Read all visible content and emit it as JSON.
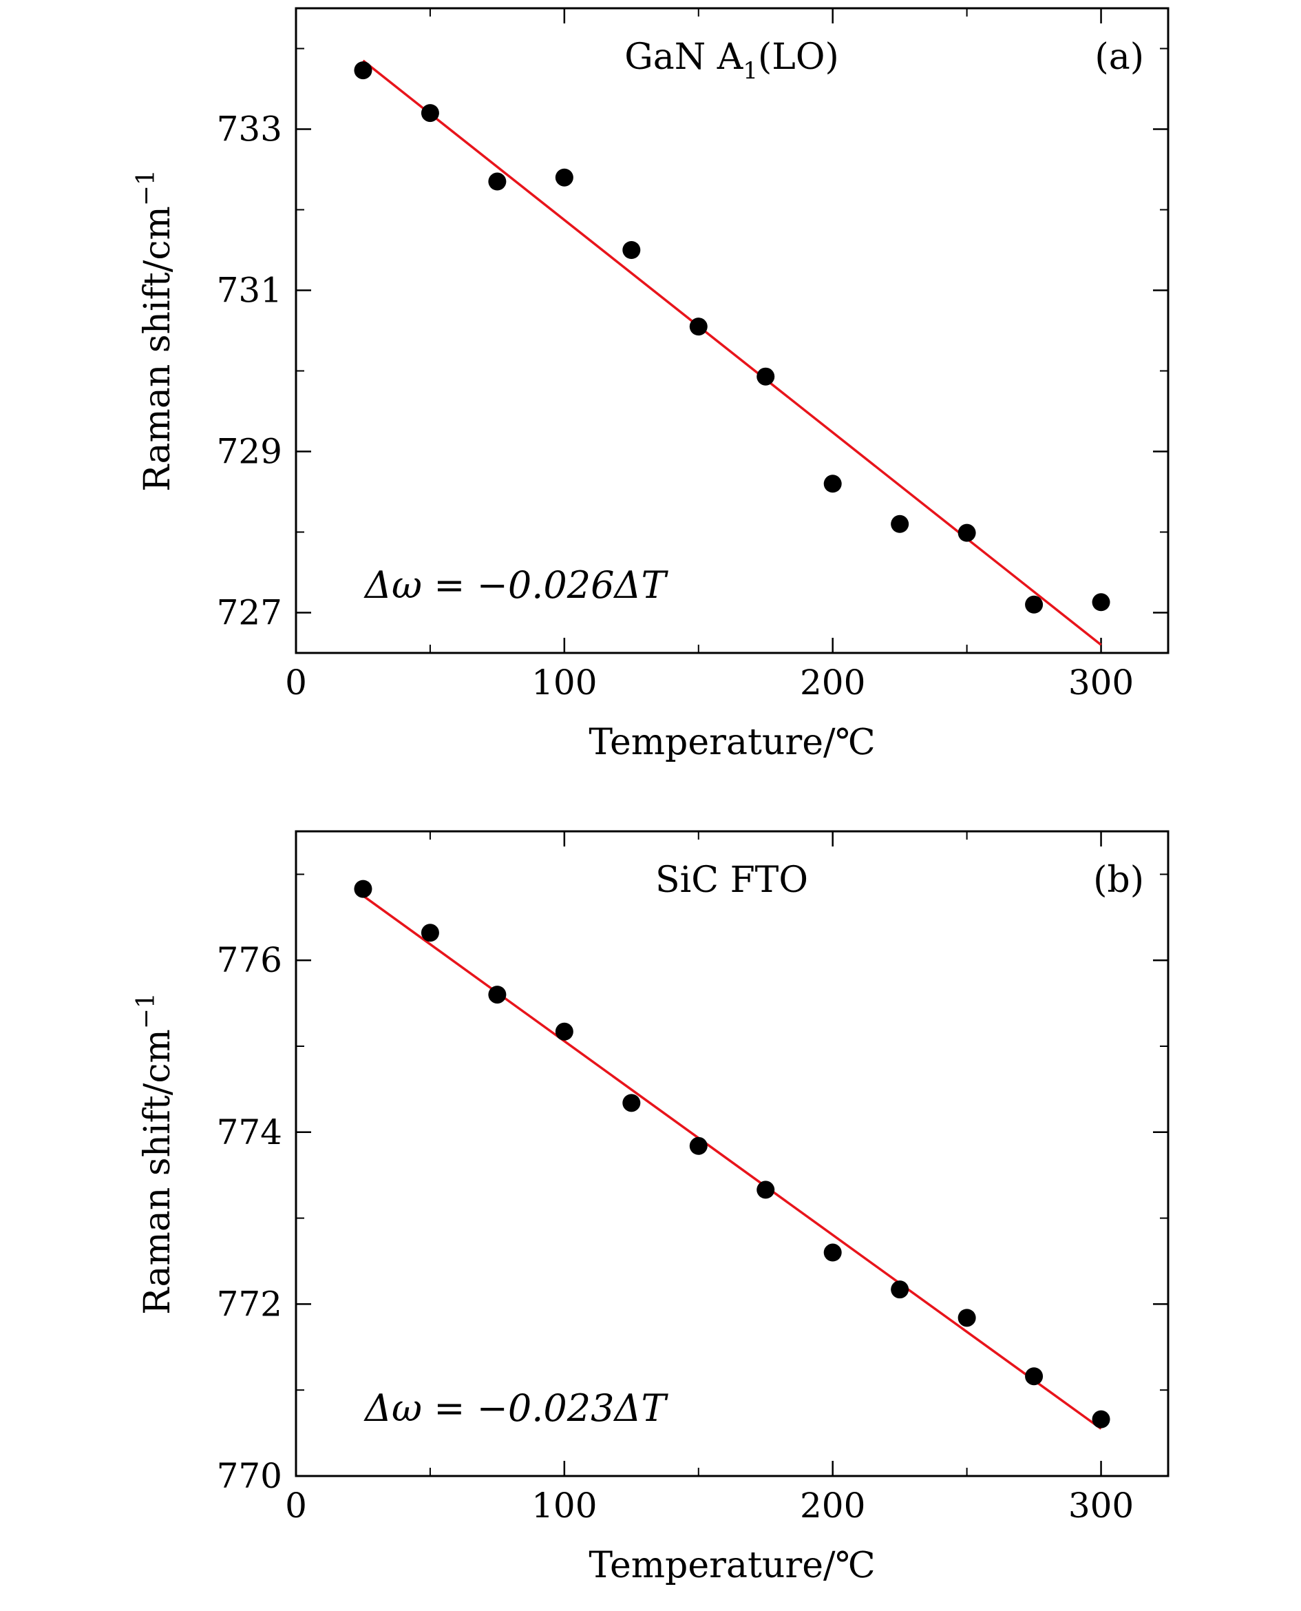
{
  "chart_data": [
    {
      "type": "scatter",
      "panel": "(a)",
      "title": "GaN A",
      "title_sub": "1",
      "title_suffix": "(LO)",
      "equation": "Δω = −0.026ΔT",
      "xlabel": "Temperature/℃",
      "ylabel": "Raman shift/cm",
      "ylabel_sup": "−1",
      "xlim": [
        0,
        325
      ],
      "ylim": [
        726.5,
        734.5
      ],
      "xticks": [
        0,
        100,
        200,
        300
      ],
      "yticks": [
        727,
        729,
        731,
        733
      ],
      "ytick_minor_step": 1,
      "xtick_minor_step": 50,
      "points": [
        {
          "x": 25,
          "y": 733.73
        },
        {
          "x": 50,
          "y": 733.2
        },
        {
          "x": 75,
          "y": 732.35
        },
        {
          "x": 100,
          "y": 732.4
        },
        {
          "x": 125,
          "y": 731.5
        },
        {
          "x": 150,
          "y": 730.55
        },
        {
          "x": 175,
          "y": 729.93
        },
        {
          "x": 200,
          "y": 728.6
        },
        {
          "x": 225,
          "y": 728.1
        },
        {
          "x": 250,
          "y": 727.99
        },
        {
          "x": 275,
          "y": 727.1
        },
        {
          "x": 300,
          "y": 727.13
        }
      ],
      "fit_line": {
        "x": [
          25,
          300
        ],
        "y": [
          733.85,
          726.6
        ]
      },
      "colors": {
        "points": "#000000",
        "fit": "#e8141b",
        "axes": "#000000"
      }
    },
    {
      "type": "scatter",
      "panel": "(b)",
      "title": "SiC FTO",
      "title_sub": "",
      "title_suffix": "",
      "equation": "Δω = −0.023ΔT",
      "xlabel": "Temperature/℃",
      "ylabel": "Raman shift/cm",
      "ylabel_sup": "−1",
      "xlim": [
        0,
        325
      ],
      "ylim": [
        770,
        777.5
      ],
      "xticks": [
        0,
        100,
        200,
        300
      ],
      "yticks": [
        770,
        772,
        774,
        776
      ],
      "ytick_minor_step": 1,
      "xtick_minor_step": 50,
      "points": [
        {
          "x": 25,
          "y": 776.83
        },
        {
          "x": 50,
          "y": 776.32
        },
        {
          "x": 75,
          "y": 775.6
        },
        {
          "x": 100,
          "y": 775.17
        },
        {
          "x": 125,
          "y": 774.34
        },
        {
          "x": 150,
          "y": 773.84
        },
        {
          "x": 175,
          "y": 773.33
        },
        {
          "x": 200,
          "y": 772.6
        },
        {
          "x": 225,
          "y": 772.17
        },
        {
          "x": 250,
          "y": 771.84
        },
        {
          "x": 275,
          "y": 771.16
        },
        {
          "x": 300,
          "y": 770.66
        }
      ],
      "fit_line": {
        "x": [
          25,
          300
        ],
        "y": [
          776.75,
          770.55
        ]
      },
      "colors": {
        "points": "#000000",
        "fit": "#e8141b",
        "axes": "#000000"
      }
    }
  ]
}
